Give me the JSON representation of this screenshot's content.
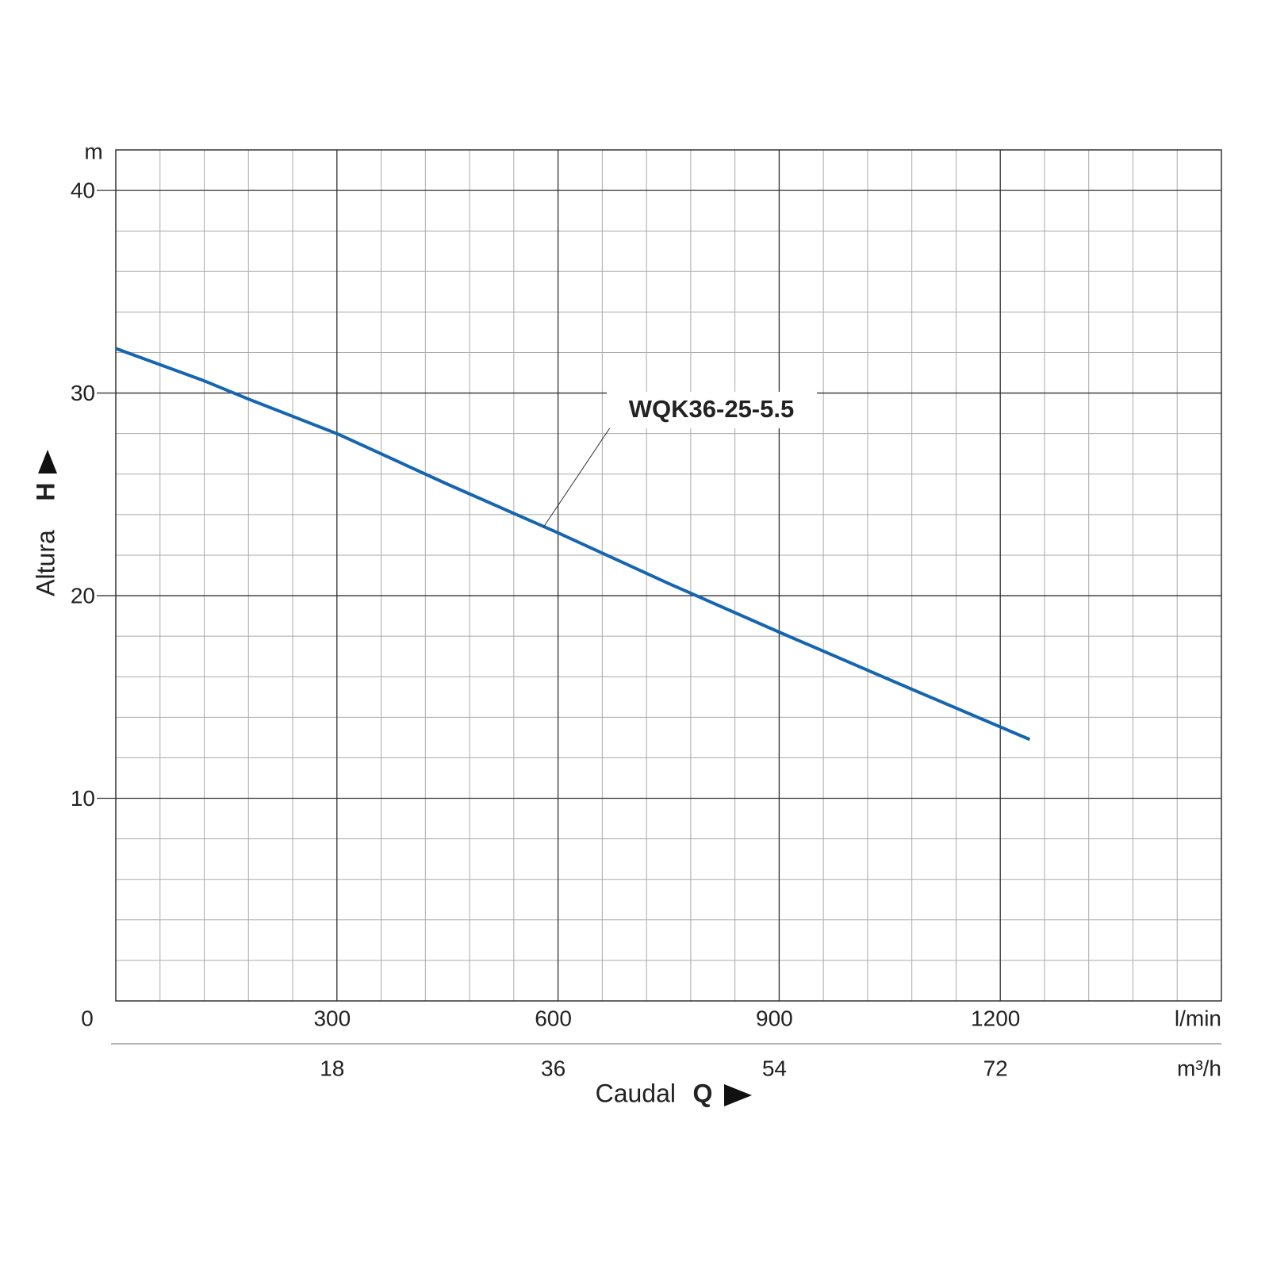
{
  "chart_data": {
    "type": "line",
    "y_unit": "m",
    "y_label": "Altura",
    "y_symbol": "H",
    "x_label": "Caudal",
    "x_symbol": "Q",
    "x_unit": "l/min",
    "x2_unit": "m³/h",
    "xlim": [
      0,
      1500
    ],
    "xticks": [
      0,
      300,
      600,
      900,
      1200
    ],
    "x2lim": [
      0,
      90
    ],
    "x2ticks": [
      18,
      36,
      54,
      72
    ],
    "ylim": [
      0,
      42
    ],
    "yticks": [
      10,
      20,
      30,
      40
    ],
    "grid": true,
    "minor_grid": {
      "x": 60,
      "y": 2
    },
    "series": [
      {
        "name": "WQK36-25-5.5",
        "color": "#1565b0",
        "x": [
          0,
          120,
          180,
          300,
          450,
          600,
          750,
          900,
          1050,
          1240
        ],
        "values": [
          32.2,
          30.6,
          29.7,
          28.0,
          25.5,
          23.1,
          20.6,
          18.2,
          15.85,
          12.9
        ]
      }
    ]
  }
}
